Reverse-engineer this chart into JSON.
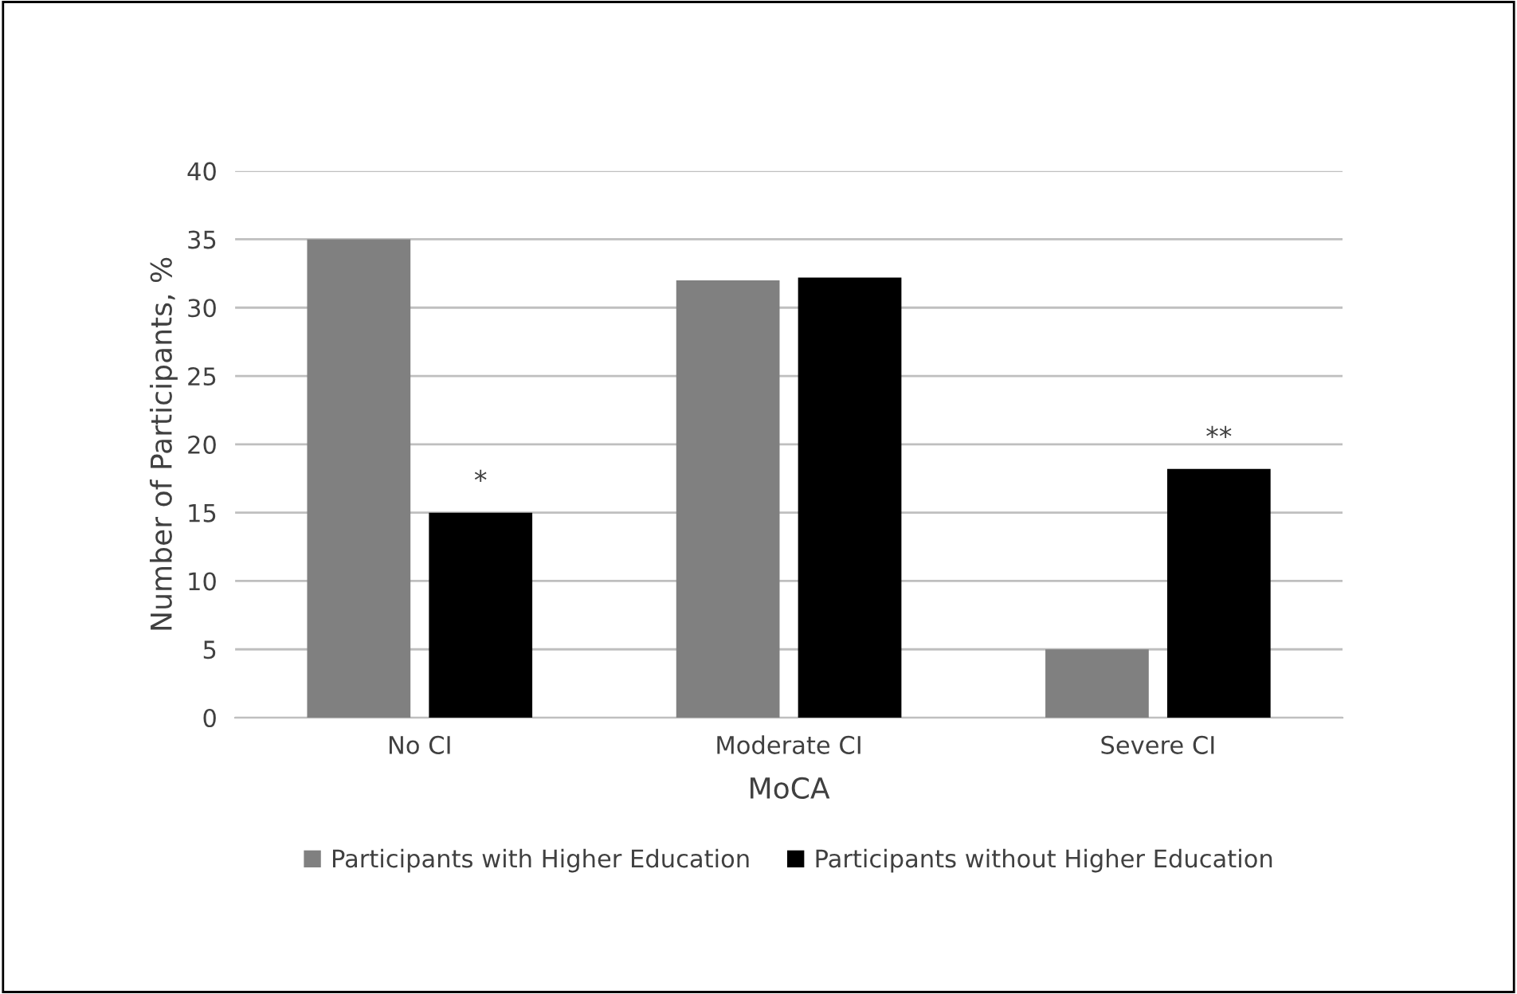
{
  "chart_data": {
    "type": "bar",
    "xlabel": "MoCA",
    "ylabel": "Number of Participants, %",
    "categories": [
      "No CI",
      "Moderate CI",
      "Severe CI"
    ],
    "series": [
      {
        "name": "Participants with Higher Education",
        "color": "#808080",
        "values": [
          35,
          32,
          5
        ]
      },
      {
        "name": "Participants without Higher Education",
        "color": "#000000",
        "values": [
          15,
          32.2,
          18.2
        ],
        "value_labels": [
          "*",
          null,
          "**"
        ]
      }
    ],
    "ylim": [
      0,
      40
    ],
    "yticks": [
      0,
      5,
      10,
      15,
      20,
      25,
      30,
      35,
      40
    ],
    "grid": "y",
    "legend": "bottom"
  }
}
